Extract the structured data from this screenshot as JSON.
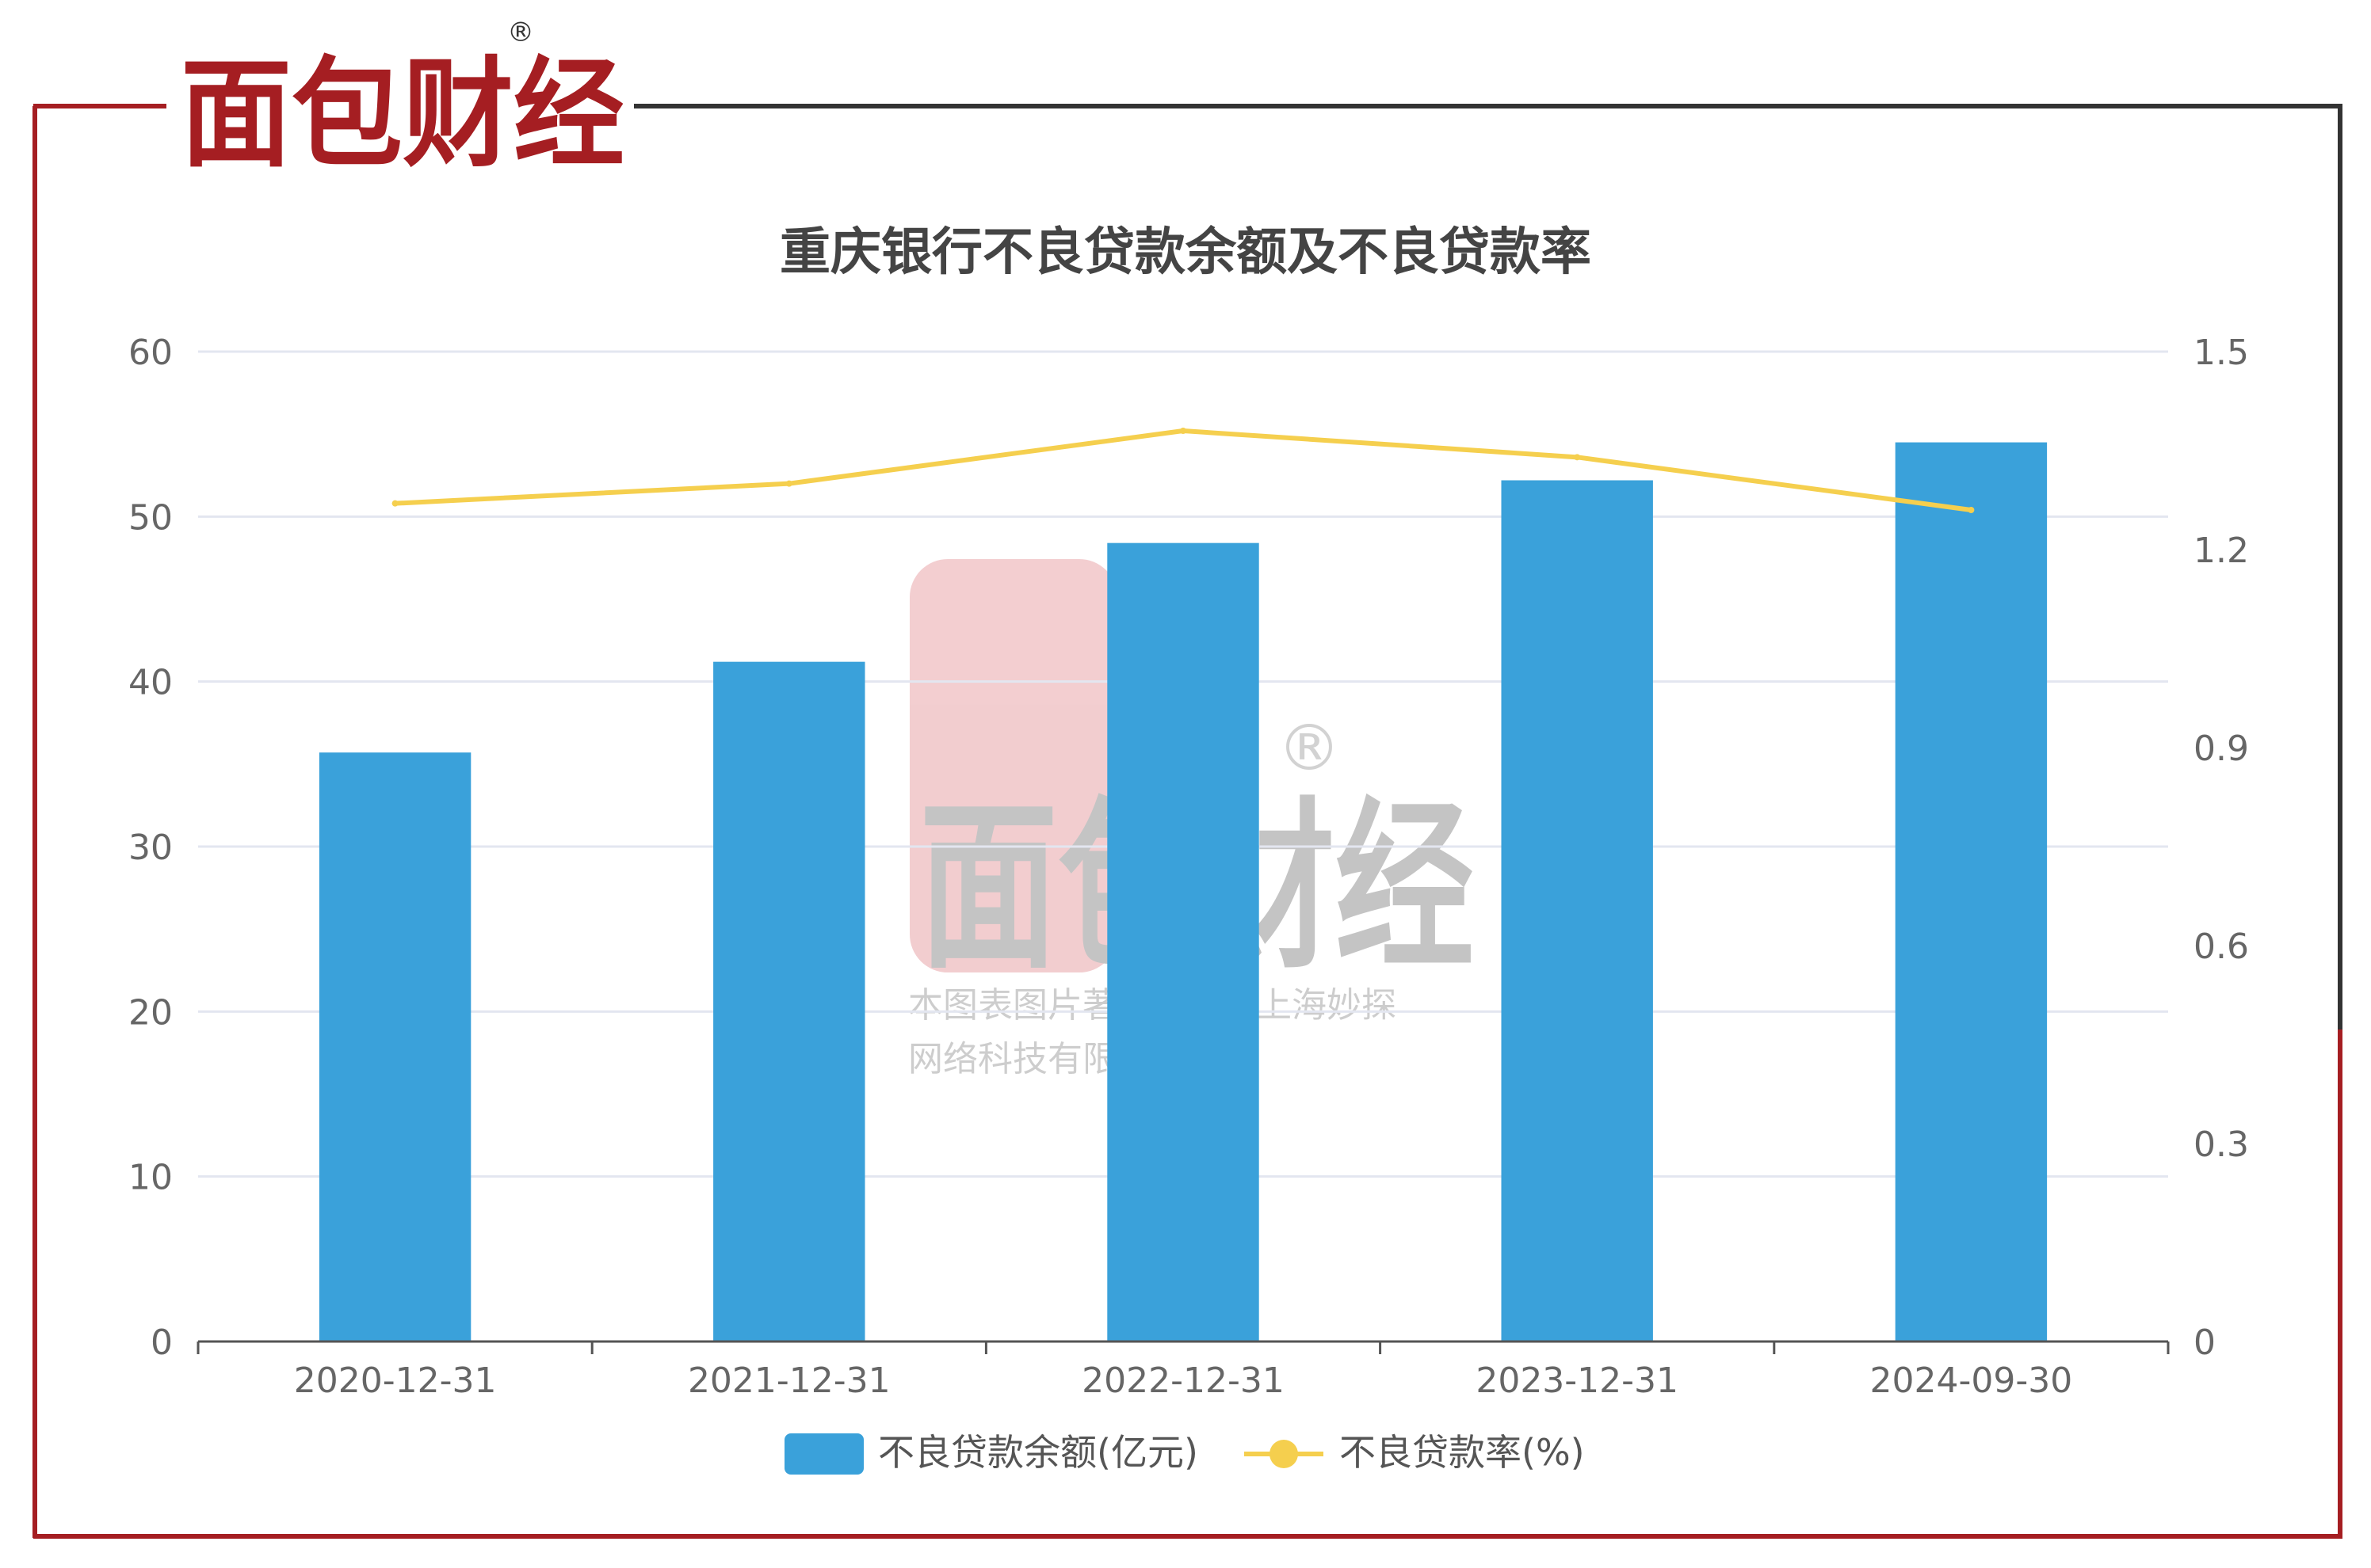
{
  "brand": {
    "logo_text": "面包财经",
    "registered_mark": "®",
    "watermark_line1": "本图表图片著作权属于上海妙探",
    "watermark_line2": "网络科技有限公司"
  },
  "colors": {
    "frame_left": "#a51e22",
    "frame_right": "#333333",
    "bar": "#3aa1da",
    "line": "#f5cf4e",
    "title": "#444444",
    "axis_text": "#666666",
    "grid": "#e3e6f0"
  },
  "chart_data": {
    "type": "bar",
    "title": "重庆银行不良贷款余额及不良贷款率",
    "categories": [
      "2020-12-31",
      "2021-12-31",
      "2022-12-31",
      "2023-12-31",
      "2024-09-30"
    ],
    "series": [
      {
        "name": "不良贷款余额(亿元)",
        "type": "bar",
        "axis": "left",
        "values": [
          35.7,
          41.2,
          48.4,
          52.2,
          54.5
        ]
      },
      {
        "name": "不良贷款率(%)",
        "type": "line",
        "axis": "right",
        "values": [
          1.27,
          1.3,
          1.38,
          1.34,
          1.26
        ]
      }
    ],
    "y_left": {
      "min": 0,
      "max": 60,
      "ticks": [
        "0",
        "10",
        "20",
        "30",
        "40",
        "50",
        "60"
      ]
    },
    "y_right": {
      "min": 0,
      "max": 1.5,
      "ticks": [
        "0",
        "0.3",
        "0.6",
        "0.9",
        "1.2",
        "1.5"
      ]
    },
    "grid": true,
    "legend_position": "bottom-center"
  }
}
